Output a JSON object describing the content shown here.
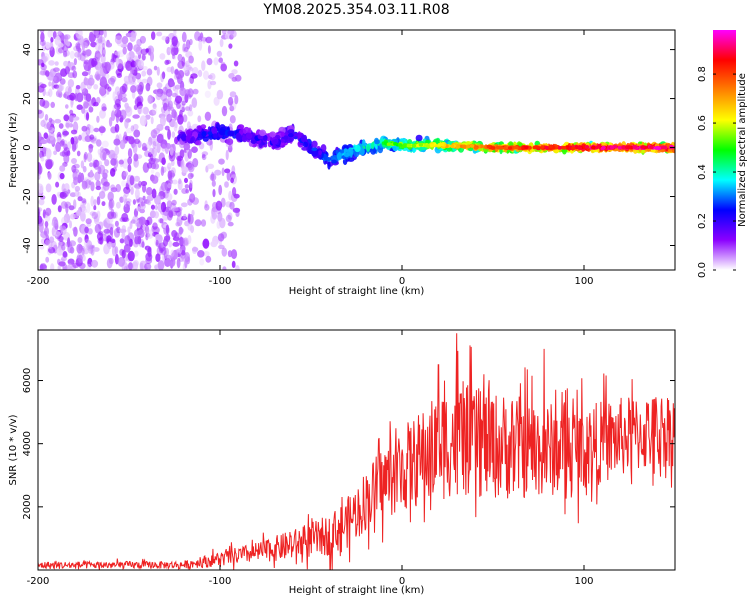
{
  "title": "YM08.2025.354.03.11.R08",
  "chart_data": [
    {
      "type": "heatmap",
      "title": "YM08.2025.354.03.11.R08",
      "xlabel": "Height of straight line (km)",
      "ylabel": "Frequency (Hz)",
      "xlim": [
        -200,
        150
      ],
      "ylim": [
        -50,
        48
      ],
      "xticks": [
        -200,
        -100,
        0,
        100
      ],
      "yticks": [
        -40,
        -20,
        0,
        20,
        40
      ],
      "colorbar": {
        "label": "Normalized spectral amplitude",
        "range": [
          0,
          0.98
        ],
        "ticks": [
          0.0,
          0.2,
          0.4,
          0.6,
          0.8
        ],
        "tick_labels": [
          "0.0",
          "0.2",
          "0.4",
          "0.6",
          "0.8"
        ],
        "colors": [
          "#ffffff",
          "#8b00ff",
          "#0000ff",
          "#00ffff",
          "#00ff00",
          "#ffff00",
          "#ff8000",
          "#ff0000",
          "#ff00ff"
        ]
      },
      "ridge": {
        "x": [
          -120,
          -100,
          -85,
          -70,
          -60,
          -50,
          -45,
          -40,
          -30,
          -20,
          -10,
          0,
          20,
          50,
          100,
          150
        ],
        "frequency": [
          4,
          6,
          5,
          2,
          6,
          0,
          -3,
          -5,
          -2,
          0,
          2,
          1,
          1,
          0,
          0,
          0
        ],
        "amplitude": [
          0.15,
          0.25,
          0.2,
          0.2,
          0.2,
          0.25,
          0.25,
          0.3,
          0.35,
          0.4,
          0.45,
          0.5,
          0.6,
          0.75,
          0.85,
          0.9
        ]
      },
      "noise_region": {
        "x_range": [
          -200,
          -115
        ],
        "amplitude_range": [
          0.02,
          0.12
        ]
      }
    },
    {
      "type": "line",
      "xlabel": "Height of straight line (km)",
      "ylabel": "SNR (10 * v/v)",
      "xlim": [
        -200,
        150
      ],
      "ylim": [
        0,
        7600
      ],
      "xticks": [
        -200,
        -100,
        0,
        100
      ],
      "yticks": [
        2000,
        4000,
        6000
      ],
      "color": "#ee2222",
      "envelope": {
        "x": [
          -200,
          -120,
          -100,
          -80,
          -60,
          -40,
          -30,
          -20,
          -10,
          0,
          10,
          20,
          30,
          40,
          60,
          80,
          100,
          120,
          150
        ],
        "mean": [
          150,
          160,
          350,
          550,
          800,
          1100,
          1500,
          2200,
          2800,
          3200,
          3500,
          3900,
          4200,
          4000,
          3900,
          3800,
          3900,
          4200,
          4500
        ],
        "spread": [
          150,
          150,
          300,
          400,
          600,
          800,
          1000,
          1200,
          1500,
          1700,
          1900,
          2200,
          2300,
          2200,
          2100,
          1900,
          1700,
          1600,
          1500
        ]
      },
      "peaks": [
        {
          "x": 30,
          "y": 7500
        },
        {
          "x": 78,
          "y": 7000
        },
        {
          "x": 20,
          "y": 6500
        },
        {
          "x": 45,
          "y": 6200
        }
      ]
    }
  ]
}
